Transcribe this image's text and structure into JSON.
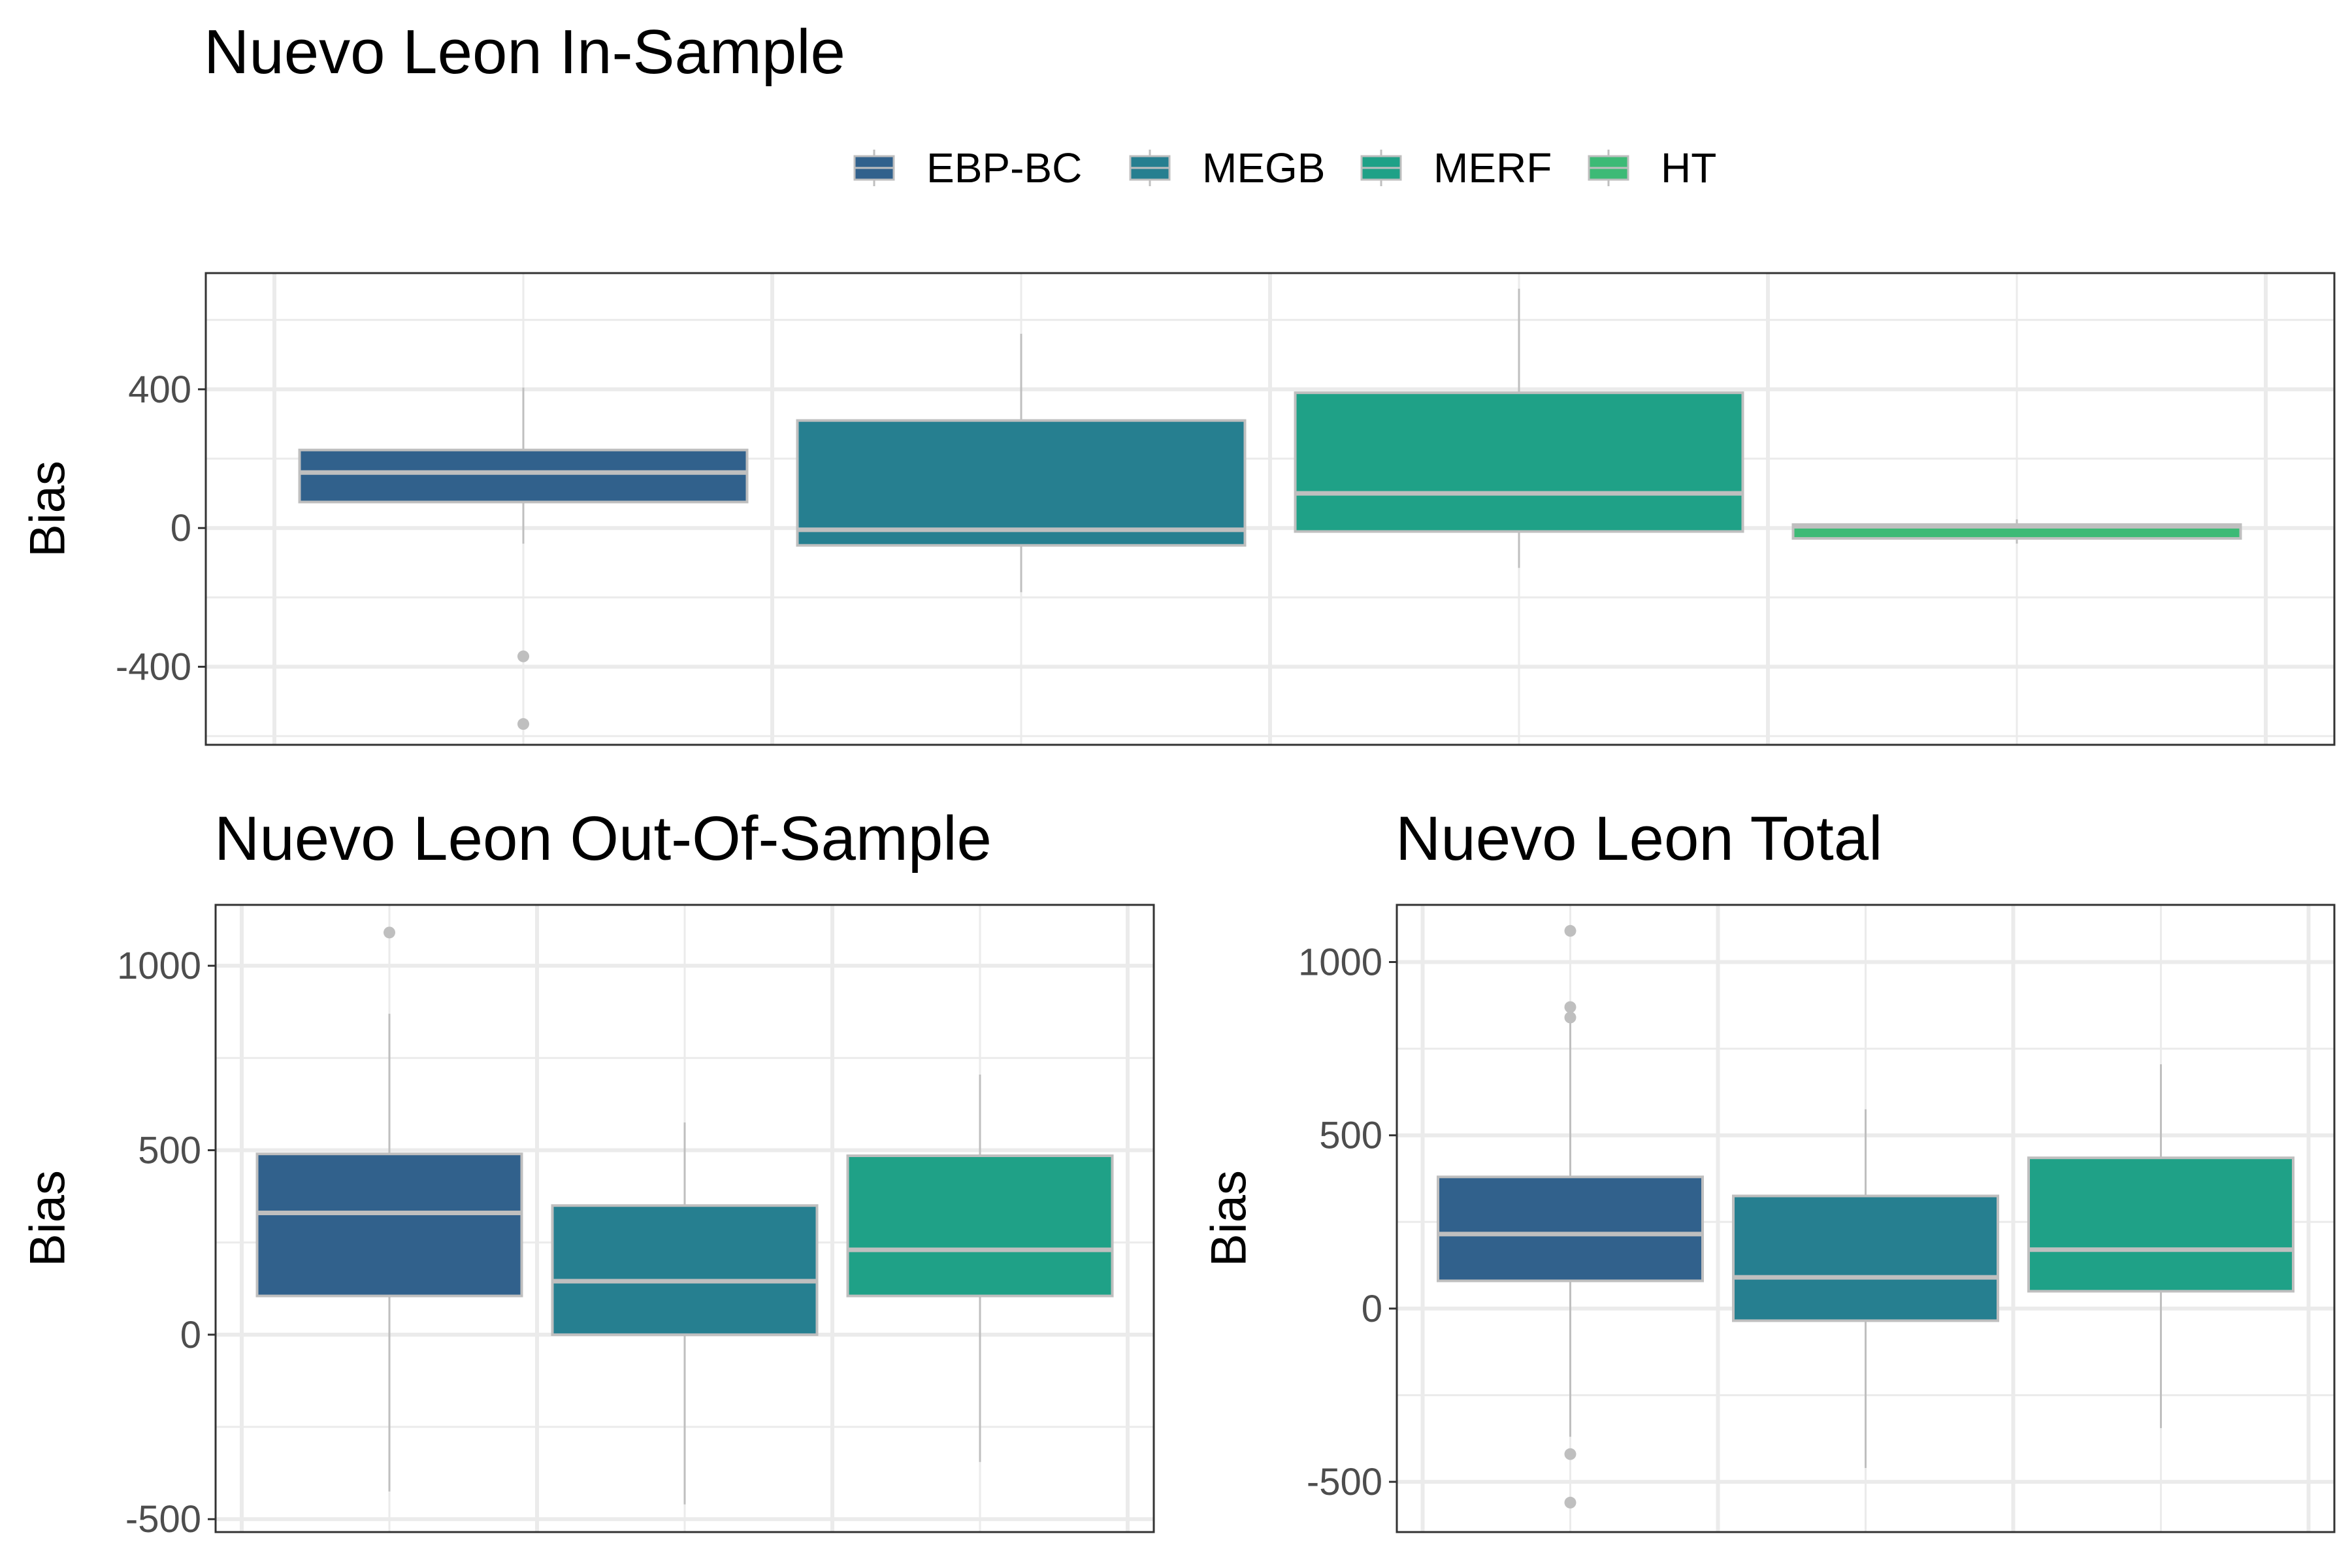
{
  "figure": {
    "title_in": "Nuevo Leon In-Sample",
    "title_out": "Nuevo Leon Out-Of-Sample",
    "title_total": "Nuevo Leon Total"
  },
  "legend": {
    "items": [
      {
        "label": "EBP-BC",
        "color": "#31618c"
      },
      {
        "label": "MEGB",
        "color": "#267f90"
      },
      {
        "label": "MERF",
        "color": "#1fa187"
      },
      {
        "label": "HT",
        "color": "#3dba76"
      }
    ]
  },
  "chart_data": [
    {
      "type": "boxplot",
      "title": "Nuevo Leon In-Sample",
      "ylabel": "Bias",
      "xlabel": "",
      "ylim": [
        -625,
        735
      ],
      "yticks": [
        -400,
        0,
        400
      ],
      "yticklabels": [
        "-400",
        "0",
        "400"
      ],
      "series": [
        {
          "name": "EBP-BC",
          "color": "#31618c",
          "whisker_low": -45,
          "q1": 75,
          "median": 160,
          "q3": 225,
          "whisker_high": 405,
          "outliers": [
            -370,
            -565
          ]
        },
        {
          "name": "MEGB",
          "color": "#267f90",
          "whisker_low": -185,
          "q1": -50,
          "median": -5,
          "q3": 310,
          "whisker_high": 560,
          "outliers": []
        },
        {
          "name": "MERF",
          "color": "#1fa187",
          "whisker_low": -115,
          "q1": -10,
          "median": 100,
          "q3": 390,
          "whisker_high": 690,
          "outliers": []
        },
        {
          "name": "HT",
          "color": "#3dba76",
          "whisker_low": -45,
          "q1": -30,
          "median": 5,
          "q3": 10,
          "whisker_high": 25,
          "outliers": []
        }
      ]
    },
    {
      "type": "boxplot",
      "title": "Nuevo Leon Out-Of-Sample",
      "ylabel": "Bias",
      "xlabel": "",
      "ylim": [
        -535,
        1165
      ],
      "yticks": [
        -500,
        0,
        500,
        1000
      ],
      "yticklabels": [
        "-500",
        "0",
        "500",
        "1000"
      ],
      "series": [
        {
          "name": "EBP-BC",
          "color": "#31618c",
          "whisker_low": -425,
          "q1": 105,
          "median": 330,
          "q3": 490,
          "whisker_high": 870,
          "outliers": [
            1090
          ]
        },
        {
          "name": "MEGB",
          "color": "#267f90",
          "whisker_low": -460,
          "q1": 0,
          "median": 145,
          "q3": 350,
          "whisker_high": 575,
          "outliers": []
        },
        {
          "name": "MERF",
          "color": "#1fa187",
          "whisker_low": -345,
          "q1": 105,
          "median": 230,
          "q3": 485,
          "whisker_high": 705,
          "outliers": []
        }
      ]
    },
    {
      "type": "boxplot",
      "title": "Nuevo Leon Total",
      "ylabel": "Bias",
      "xlabel": "",
      "ylim": [
        -645,
        1165
      ],
      "yticks": [
        -500,
        0,
        500,
        1000
      ],
      "yticklabels": [
        "-500",
        "0",
        "500",
        "1000"
      ],
      "series": [
        {
          "name": "EBP-BC",
          "color": "#31618c",
          "whisker_low": -370,
          "q1": 80,
          "median": 215,
          "q3": 380,
          "whisker_high": 830,
          "outliers": [
            1090,
            870,
            840,
            -420,
            -560
          ]
        },
        {
          "name": "MEGB",
          "color": "#267f90",
          "whisker_low": -460,
          "q1": -35,
          "median": 90,
          "q3": 325,
          "whisker_high": 575,
          "outliers": []
        },
        {
          "name": "MERF",
          "color": "#1fa187",
          "whisker_low": -345,
          "q1": 50,
          "median": 170,
          "q3": 435,
          "whisker_high": 705,
          "outliers": []
        }
      ]
    }
  ]
}
